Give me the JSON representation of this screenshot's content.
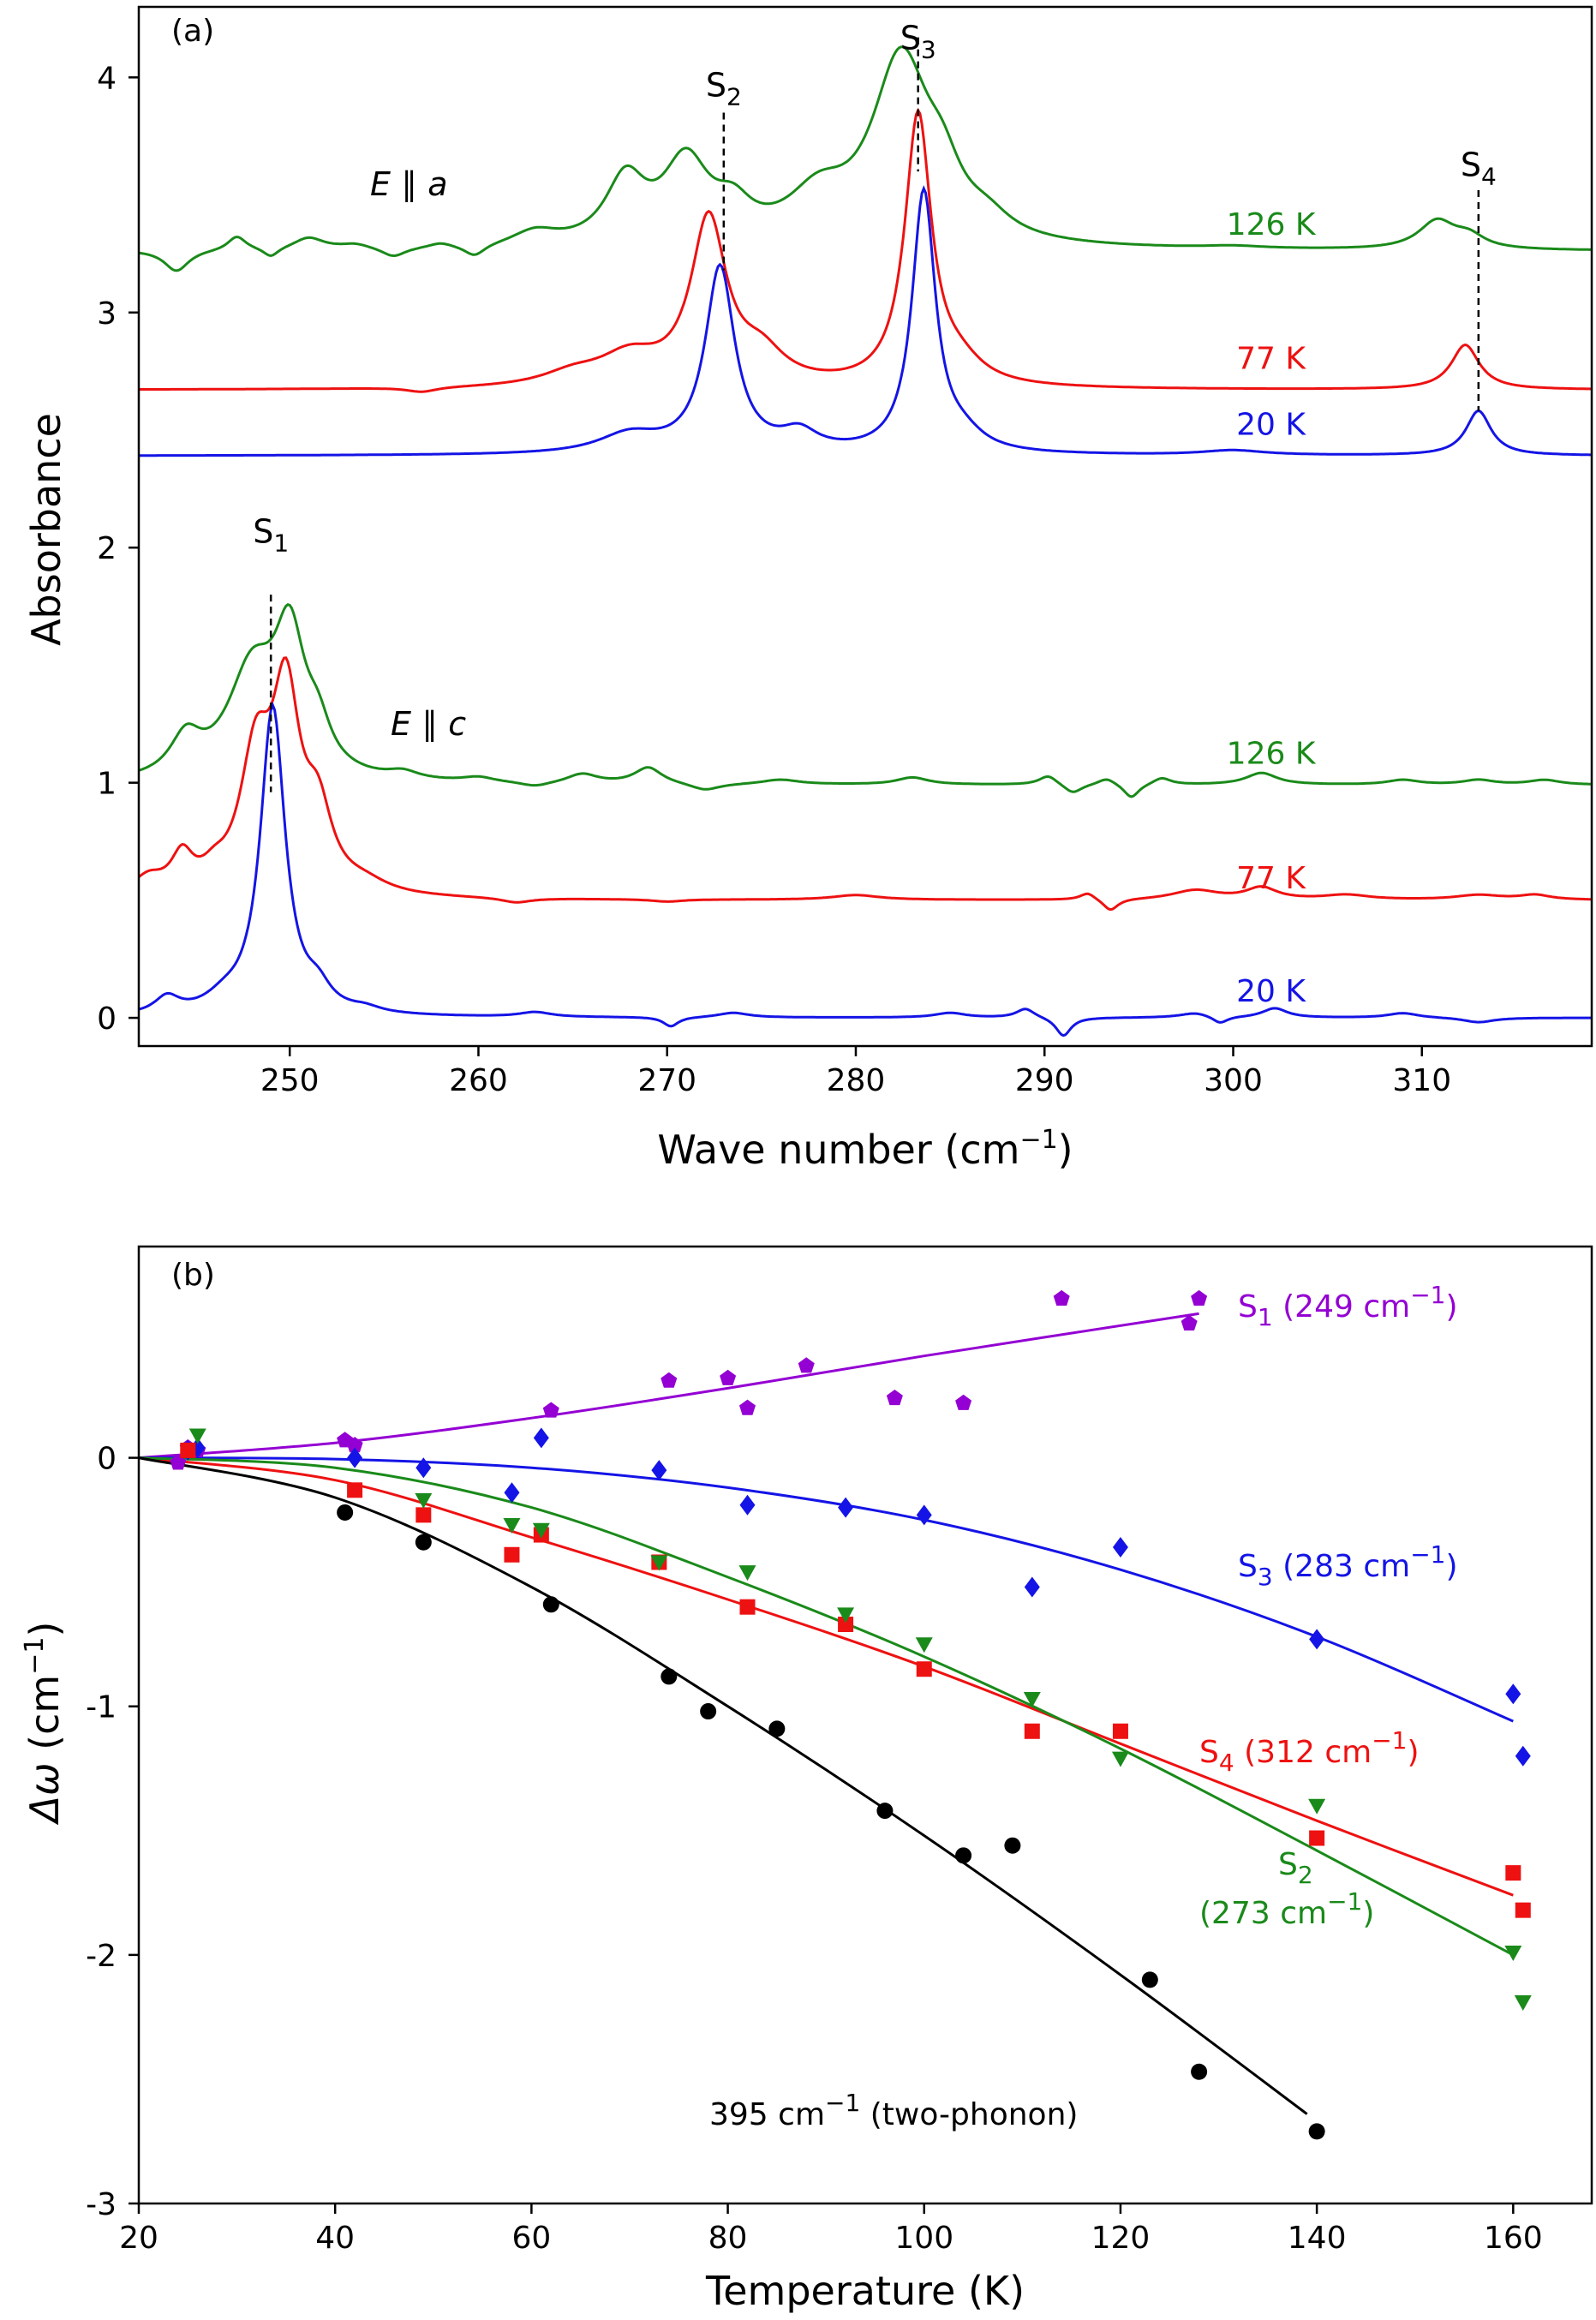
{
  "colors": {
    "green": "#1a8a1a",
    "red": "#ee1111",
    "blue": "#1414e6",
    "purple": "#9400d3",
    "black": "#000000"
  },
  "panel_a": {
    "label": "(a)",
    "xlabel": "Wave number (cm",
    "xlabel_sup": "−1",
    "xlabel_end": ")",
    "ylabel": "Absorbance",
    "pol_a": {
      "e": "E",
      "sep": " ∥ ",
      "axis": "a"
    },
    "pol_c": {
      "e": "E",
      "sep": " ∥ ",
      "axis": "c"
    },
    "peaks": [
      {
        "name": "S",
        "sub": "1",
        "x": 249
      },
      {
        "name": "S",
        "sub": "2",
        "x": 273
      },
      {
        "name": "S",
        "sub": "3",
        "x": 283.3
      },
      {
        "name": "S",
        "sub": "4",
        "x": 313
      }
    ],
    "temp_labels": [
      {
        "text": "126 K",
        "color": "green",
        "x": 302,
        "y": 3.33
      },
      {
        "text": "77 K",
        "color": "red",
        "x": 302,
        "y": 2.76
      },
      {
        "text": "20 K",
        "color": "blue",
        "x": 302,
        "y": 2.48
      },
      {
        "text": "126 K",
        "color": "green",
        "x": 302,
        "y": 1.08
      },
      {
        "text": "77 K",
        "color": "red",
        "x": 302,
        "y": 0.55
      },
      {
        "text": "20 K",
        "color": "blue",
        "x": 302,
        "y": 0.07
      }
    ]
  },
  "panel_b": {
    "label": "(b)",
    "xlabel": "Temperature (K)",
    "ylabel_greek": "Δω",
    "ylabel_rest": " (cm",
    "ylabel_sup": "−1",
    "ylabel_end": ")",
    "series_labels": [
      {
        "key": "S1",
        "pre": "S",
        "sub": "1",
        "post": " (249 cm",
        "sup": "−1",
        "end": ")",
        "color": "purple"
      },
      {
        "key": "S3",
        "pre": "S",
        "sub": "3",
        "post": " (283 cm",
        "sup": "−1",
        "end": ")",
        "color": "blue"
      },
      {
        "key": "S4",
        "pre": "S",
        "sub": "4",
        "post": " (312 cm",
        "sup": "−1",
        "end": ")",
        "color": "red"
      },
      {
        "key": "S2a",
        "pre": "S",
        "sub": "2",
        "post": "",
        "sup": "",
        "end": "",
        "color": "green"
      },
      {
        "key": "S2b",
        "pre": "(273 cm",
        "sub": "",
        "post": "",
        "sup": "−1",
        "end": ")",
        "color": "green"
      },
      {
        "key": "TP",
        "pre": "395 cm",
        "sub": "",
        "post": "",
        "sup": "−1",
        "end": " (two-phonon)",
        "color": "black"
      }
    ]
  },
  "chart_data": [
    {
      "type": "line",
      "title": "",
      "xlabel": "Wave number (cm−1)",
      "ylabel": "Absorbance",
      "xlim": [
        242,
        319
      ],
      "ylim": [
        -0.12,
        4.3
      ],
      "xticks": [
        250,
        260,
        270,
        280,
        290,
        300,
        310
      ],
      "yticks": [
        0,
        1,
        2,
        3,
        4
      ],
      "grid": false,
      "legend": "none",
      "series": [
        {
          "name": "126 K",
          "polarization": "E∥a",
          "color": "green",
          "baseline": 3.26,
          "peaks": [
            [
              244,
              -0.09,
              0.8
            ],
            [
              247.2,
              0.06,
              0.6
            ],
            [
              249,
              -0.04,
              0.5
            ],
            [
              251,
              0.05,
              1.0
            ],
            [
              253.5,
              0.02,
              1.0
            ],
            [
              255.5,
              -0.04,
              0.8
            ],
            [
              258,
              0.02,
              0.8
            ],
            [
              259.8,
              -0.05,
              0.7
            ],
            [
              263,
              0.06,
              1.5
            ],
            [
              267.8,
              0.27,
              1.3
            ],
            [
              271,
              0.34,
              1.5
            ],
            [
              273.5,
              0.12,
              1.2
            ],
            [
              278,
              0.18,
              2.0
            ],
            [
              282.4,
              0.78,
              1.9
            ],
            [
              284.6,
              0.18,
              1.2
            ],
            [
              287,
              0.07,
              1.5
            ],
            [
              300,
              0.01,
              2.0
            ],
            [
              310.8,
              0.12,
              1.2
            ],
            [
              312.5,
              0.05,
              1.0
            ]
          ]
        },
        {
          "name": "77 K",
          "polarization": "E∥a",
          "color": "red",
          "baseline": 2.67,
          "peaks": [
            [
              257,
              -0.02,
              1.0
            ],
            [
              268,
              0.12,
              2.0
            ],
            [
              272.2,
              0.7,
              1.15
            ],
            [
              275,
              0.12,
              1.5
            ],
            [
              283.3,
              1.15,
              0.85
            ],
            [
              285.5,
              0.08,
              1.5
            ],
            [
              312.3,
              0.19,
              0.9
            ],
            [
              265,
              0.05,
              2.0
            ]
          ]
        },
        {
          "name": "20 K",
          "polarization": "E∥a",
          "color": "blue",
          "baseline": 2.39,
          "peaks": [
            [
              268,
              0.08,
              2.0
            ],
            [
              272.8,
              0.79,
              0.95
            ],
            [
              277,
              0.08,
              1.2
            ],
            [
              283.6,
              1.11,
              0.75
            ],
            [
              285.7,
              0.06,
              1.3
            ],
            [
              313,
              0.19,
              0.8
            ],
            [
              300,
              0.02,
              2.0
            ]
          ]
        },
        {
          "name": "126 K",
          "polarization": "E∥c",
          "color": "green",
          "baseline": 0.99,
          "peaks": [
            [
              244.5,
              0.16,
              1.0
            ],
            [
              248,
              0.45,
              1.6
            ],
            [
              250,
              0.55,
              1.0
            ],
            [
              251.5,
              0.15,
              0.8
            ],
            [
              256,
              0.03,
              1.0
            ],
            [
              260,
              0.02,
              1.0
            ],
            [
              263,
              -0.02,
              1.0
            ],
            [
              265.5,
              0.04,
              1.0
            ],
            [
              269,
              0.07,
              0.9
            ],
            [
              272,
              -0.03,
              1.0
            ],
            [
              276,
              0.02,
              1.2
            ],
            [
              283,
              0.03,
              1.0
            ],
            [
              290.2,
              0.04,
              0.6
            ],
            [
              291.5,
              -0.04,
              0.6
            ],
            [
              293.3,
              0.03,
              0.6
            ],
            [
              294.6,
              -0.06,
              0.5
            ],
            [
              296.2,
              0.03,
              0.6
            ],
            [
              301.5,
              0.05,
              1.0
            ],
            [
              309,
              0.02,
              1.0
            ],
            [
              313,
              0.02,
              1.0
            ],
            [
              316.5,
              0.02,
              1.0
            ]
          ]
        },
        {
          "name": "77 K",
          "polarization": "E∥c",
          "color": "red",
          "baseline": 0.5,
          "peaks": [
            [
              242.5,
              0.07,
              1.0
            ],
            [
              244.3,
              0.15,
              0.7
            ],
            [
              246,
              0.06,
              0.8
            ],
            [
              248.2,
              0.55,
              1.0
            ],
            [
              249.8,
              0.8,
              0.9
            ],
            [
              251.5,
              0.3,
              0.9
            ],
            [
              254,
              0.04,
              1.5
            ],
            [
              262,
              -0.02,
              1.0
            ],
            [
              270,
              -0.01,
              1.0
            ],
            [
              280,
              0.02,
              1.5
            ],
            [
              292.3,
              0.03,
              0.5
            ],
            [
              293.5,
              -0.05,
              0.5
            ],
            [
              298,
              0.04,
              1.5
            ],
            [
              301.5,
              0.05,
              1.0
            ],
            [
              306,
              0.02,
              1.5
            ],
            [
              313,
              0.02,
              1.5
            ],
            [
              316,
              0.02,
              1.0
            ]
          ]
        },
        {
          "name": "20 K",
          "polarization": "E∥c",
          "color": "blue",
          "baseline": 0.0,
          "peaks": [
            [
              243.5,
              0.07,
              0.8
            ],
            [
              246.5,
              0.05,
              1.2
            ],
            [
              249.1,
              1.31,
              0.8
            ],
            [
              251.5,
              0.08,
              0.8
            ],
            [
              254,
              0.02,
              1.0
            ],
            [
              263,
              0.02,
              1.0
            ],
            [
              270.2,
              -0.04,
              0.5
            ],
            [
              273.5,
              0.02,
              1.0
            ],
            [
              285,
              0.02,
              1.0
            ],
            [
              289,
              0.04,
              0.6
            ],
            [
              291,
              -0.08,
              0.5
            ],
            [
              298,
              0.02,
              1.0
            ],
            [
              299.3,
              -0.03,
              0.5
            ],
            [
              302.2,
              0.04,
              0.8
            ],
            [
              309,
              0.02,
              1.0
            ],
            [
              313,
              -0.02,
              1.0
            ]
          ]
        }
      ]
    },
    {
      "type": "scatter",
      "title": "",
      "xlabel": "Temperature (K)",
      "ylabel": "Δω (cm−1)",
      "xlim": [
        20,
        168
      ],
      "ylim": [
        -3,
        0.85
      ],
      "xticks": [
        20,
        40,
        60,
        80,
        100,
        120,
        140,
        160
      ],
      "yticks": [
        0,
        -1,
        -2,
        -3
      ],
      "grid": false,
      "legend": "none",
      "series": [
        {
          "name": "S1 (249 cm−1)",
          "color": "purple",
          "marker": "pentagon",
          "x": [
            24,
            25,
            26,
            41,
            42,
            62,
            74,
            80,
            82,
            88,
            97,
            104,
            114,
            127,
            128
          ],
          "y": [
            -0.02,
            0.04,
            0.03,
            0.07,
            0.05,
            0.19,
            0.31,
            0.32,
            0.2,
            0.37,
            0.24,
            0.22,
            0.64,
            0.54,
            0.64
          ],
          "fit": {
            "x": [
              20,
              40,
              60,
              80,
              100,
              128
            ],
            "y": [
              0,
              0.06,
              0.16,
              0.28,
              0.41,
              0.58
            ]
          }
        },
        {
          "name": "S3 (283 cm−1)",
          "color": "blue",
          "marker": "diamond",
          "x": [
            25,
            26,
            42,
            49,
            58,
            61,
            73,
            82,
            92,
            100,
            111,
            120,
            140,
            160,
            161
          ],
          "y": [
            0.03,
            0.04,
            0.0,
            -0.04,
            -0.14,
            0.08,
            -0.05,
            -0.19,
            -0.2,
            -0.23,
            -0.52,
            -0.36,
            -0.73,
            -0.95,
            -1.2
          ],
          "fit": {
            "x": [
              20,
              40,
              60,
              80,
              100,
              120,
              140,
              160
            ],
            "y": [
              0,
              -0.005,
              -0.04,
              -0.12,
              -0.25,
              -0.45,
              -0.72,
              -1.06
            ]
          }
        },
        {
          "name": "S4 (312 cm−1)",
          "color": "red",
          "marker": "square",
          "x": [
            25,
            42,
            49,
            58,
            61,
            73,
            82,
            92,
            100,
            111,
            120,
            140,
            160,
            161
          ],
          "y": [
            0.03,
            -0.13,
            -0.23,
            -0.39,
            -0.31,
            -0.42,
            -0.6,
            -0.67,
            -0.85,
            -1.1,
            -1.1,
            -1.53,
            -1.67,
            -1.82
          ],
          "fit": {
            "x": [
              20,
              40,
              60,
              80,
              100,
              120,
              140,
              160
            ],
            "y": [
              0,
              -0.09,
              -0.32,
              -0.57,
              -0.84,
              -1.15,
              -1.46,
              -1.76
            ]
          }
        },
        {
          "name": "S2 (273 cm−1)",
          "color": "green",
          "marker": "triangle-down",
          "x": [
            26,
            49,
            58,
            61,
            73,
            82,
            92,
            100,
            111,
            120,
            140,
            160,
            161
          ],
          "y": [
            0.09,
            -0.17,
            -0.27,
            -0.29,
            -0.42,
            -0.46,
            -0.63,
            -0.75,
            -0.97,
            -1.21,
            -1.4,
            -1.99,
            -2.19
          ],
          "fit": {
            "x": [
              20,
              40,
              60,
              80,
              100,
              120,
              140,
              160
            ],
            "y": [
              0,
              -0.04,
              -0.2,
              -0.48,
              -0.8,
              -1.17,
              -1.58,
              -2.0
            ]
          }
        },
        {
          "name": "395 cm−1 (two-phonon)",
          "color": "black",
          "marker": "circle",
          "x": [
            41,
            49,
            62,
            74,
            78,
            85,
            96,
            104,
            109,
            123,
            128,
            140
          ],
          "y": [
            -0.22,
            -0.34,
            -0.59,
            -0.88,
            -1.02,
            -1.09,
            -1.42,
            -1.6,
            -1.56,
            -2.1,
            -2.47,
            -2.71
          ],
          "fit": {
            "x": [
              20,
              40,
              60,
              80,
              100,
              120,
              139
            ],
            "y": [
              0,
              -0.16,
              -0.52,
              -1.0,
              -1.52,
              -2.08,
              -2.64
            ]
          }
        }
      ]
    }
  ]
}
